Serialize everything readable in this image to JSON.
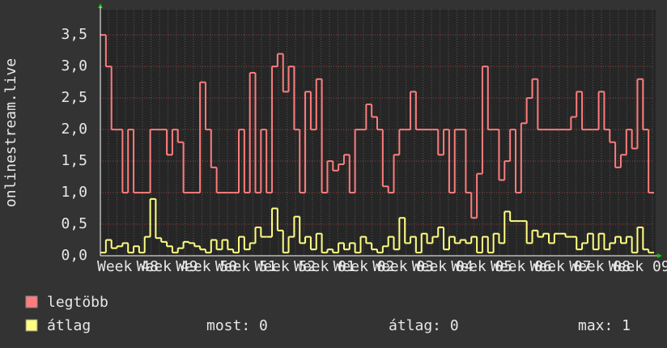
{
  "chart_data": {
    "type": "line",
    "ylabel": "onlinestream.live",
    "xlabels": [
      "Week 48",
      "Week 49",
      "Week 50",
      "Week 51",
      "Week 52",
      "Week 01",
      "Week 02",
      "Week 03",
      "Week 04",
      "Week 05",
      "Week 06",
      "Week 07",
      "Week 08",
      "Week 09"
    ],
    "ylim": [
      0,
      3.9
    ],
    "yticks": [
      {
        "value": 0,
        "label": "0,0"
      },
      {
        "value": 0.5,
        "label": "0,5"
      },
      {
        "value": 1,
        "label": "1,0"
      },
      {
        "value": 1.5,
        "label": "1,5"
      },
      {
        "value": 2,
        "label": "2,0"
      },
      {
        "value": 2.5,
        "label": "2,5"
      },
      {
        "value": 3,
        "label": "3,0"
      },
      {
        "value": 3.5,
        "label": "3,5"
      }
    ],
    "grid": true,
    "series": [
      {
        "name": "legtöbb",
        "color": "#ff7c7c",
        "values": [
          3.5,
          3.0,
          2.0,
          2.0,
          1.0,
          2.0,
          1.0,
          1.0,
          1.0,
          2.0,
          2.0,
          2.0,
          1.6,
          2.0,
          1.8,
          1.0,
          1.0,
          1.0,
          2.75,
          2.0,
          1.4,
          1.0,
          1.0,
          1.0,
          1.0,
          2.0,
          1.0,
          2.9,
          1.0,
          2.0,
          1.0,
          3.0,
          3.2,
          2.6,
          3.0,
          2.0,
          1.0,
          2.6,
          2.0,
          2.8,
          1.0,
          1.5,
          1.35,
          1.45,
          1.6,
          1.0,
          2.0,
          2.0,
          2.4,
          2.2,
          2.0,
          1.1,
          1.0,
          1.6,
          2.0,
          2.0,
          2.6,
          2.0,
          2.0,
          2.0,
          2.0,
          1.6,
          2.0,
          1.0,
          2.0,
          2.0,
          1.0,
          0.6,
          1.3,
          3.0,
          2.0,
          2.0,
          1.2,
          1.5,
          2.0,
          1.0,
          2.1,
          2.5,
          2.8,
          2.0,
          2.0,
          2.0,
          2.0,
          2.0,
          2.0,
          2.2,
          2.6,
          2.0,
          2.0,
          2.0,
          2.6,
          2.0,
          1.8,
          1.4,
          1.6,
          2.0,
          1.7,
          2.8,
          2.0,
          1.0
        ]
      },
      {
        "name": "átlag",
        "color": "#ffff80",
        "values": [
          0.05,
          0.25,
          0.12,
          0.15,
          0.2,
          0.05,
          0.15,
          0.05,
          0.3,
          0.9,
          0.28,
          0.22,
          0.15,
          0.05,
          0.12,
          0.22,
          0.2,
          0.15,
          0.1,
          0.05,
          0.25,
          0.1,
          0.25,
          0.1,
          0.05,
          0.3,
          0.1,
          0.2,
          0.45,
          0.3,
          0.3,
          0.75,
          0.4,
          0.05,
          0.3,
          0.62,
          0.2,
          0.3,
          0.1,
          0.35,
          0.05,
          0.1,
          0.05,
          0.2,
          0.1,
          0.2,
          0.05,
          0.3,
          0.2,
          0.1,
          0.05,
          0.15,
          0.3,
          0.1,
          0.6,
          0.2,
          0.3,
          0.05,
          0.35,
          0.2,
          0.3,
          0.45,
          0.1,
          0.3,
          0.2,
          0.25,
          0.2,
          0.3,
          0.05,
          0.3,
          0.05,
          0.35,
          0.2,
          0.7,
          0.55,
          0.55,
          0.55,
          0.2,
          0.4,
          0.3,
          0.35,
          0.2,
          0.35,
          0.35,
          0.3,
          0.3,
          0.1,
          0.2,
          0.35,
          0.1,
          0.35,
          0.1,
          0.2,
          0.3,
          0.2,
          0.3,
          0.05,
          0.45,
          0.1,
          0.05
        ]
      }
    ],
    "stats": [
      "most: 0",
      "átlag: 0",
      "max: 1"
    ]
  }
}
